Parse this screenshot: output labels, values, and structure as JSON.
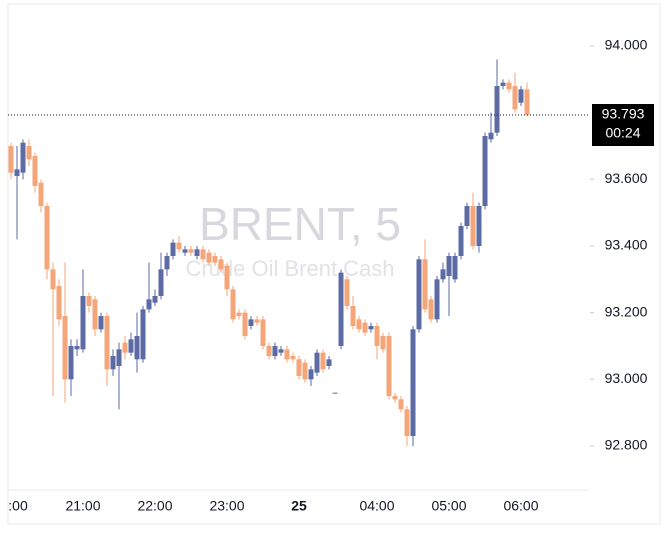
{
  "chart_data": {
    "type": "candlestick",
    "watermark": {
      "symbol": "BRENT, 5",
      "description": "Crude Oil Brent Cash"
    },
    "categories": [
      ":00",
      null,
      null,
      null,
      null,
      null,
      null,
      null,
      null,
      null,
      null,
      null,
      "21:00",
      null,
      null,
      null,
      null,
      null,
      null,
      null,
      null,
      null,
      null,
      null,
      "22:00",
      null,
      null,
      null,
      null,
      null,
      null,
      null,
      null,
      null,
      null,
      null,
      "23:00",
      null,
      null,
      null,
      null,
      null,
      null,
      null,
      null,
      null,
      null,
      null,
      "25",
      null,
      null,
      null,
      null,
      null,
      null,
      null,
      null,
      null,
      null,
      null,
      null,
      "04:00",
      null,
      null,
      null,
      null,
      null,
      null,
      null,
      null,
      null,
      null,
      null,
      "05:00",
      null,
      null,
      null,
      null,
      null,
      null,
      null,
      null,
      null,
      null,
      null,
      "06:00",
      null
    ],
    "open": [
      93.7,
      93.61,
      93.62,
      93.7,
      93.67,
      93.59,
      93.52,
      93.33,
      93.28,
      93.19,
      93.0,
      93.09,
      93.09,
      93.25,
      93.24,
      93.15,
      93.19,
      93.03,
      93.04,
      93.11,
      93.08,
      93.06,
      93.06,
      93.21,
      93.23,
      93.25,
      93.33,
      93.37,
      93.41,
      93.38,
      93.39,
      93.37,
      93.39,
      93.38,
      93.37,
      93.36,
      93.34,
      93.27,
      93.2,
      93.2,
      93.16,
      93.18,
      93.18,
      93.1,
      93.07,
      93.08,
      93.09,
      93.07,
      93.06,
      93.05,
      93.0,
      93.02,
      93.08,
      93.04,
      92.96,
      93.1,
      93.3,
      93.22,
      93.18,
      93.17,
      93.15,
      93.16,
      93.13,
      93.13,
      92.95,
      92.94,
      92.91,
      92.83,
      93.15,
      93.36,
      93.24,
      93.18,
      93.3,
      93.31,
      93.3,
      93.37,
      93.46,
      93.52,
      93.4,
      93.52,
      93.72,
      93.74,
      93.88,
      93.89,
      93.88,
      93.83,
      93.87
    ],
    "high": [
      93.71,
      93.7,
      93.72,
      93.72,
      93.68,
      93.6,
      93.53,
      93.35,
      93.3,
      93.35,
      93.12,
      93.12,
      93.33,
      93.26,
      93.25,
      93.2,
      93.2,
      93.09,
      93.11,
      93.13,
      93.14,
      93.2,
      93.22,
      93.35,
      93.27,
      93.38,
      93.38,
      93.42,
      93.43,
      93.4,
      93.4,
      93.4,
      93.4,
      93.39,
      93.38,
      93.37,
      93.35,
      93.28,
      93.21,
      93.21,
      93.19,
      93.19,
      93.19,
      93.11,
      93.11,
      93.1,
      93.1,
      93.08,
      93.07,
      93.06,
      93.04,
      93.09,
      93.09,
      93.07,
      92.96,
      93.33,
      93.31,
      93.25,
      93.19,
      93.18,
      93.17,
      93.17,
      93.14,
      93.14,
      92.96,
      92.95,
      92.92,
      93.16,
      93.37,
      93.42,
      93.25,
      93.31,
      93.35,
      93.38,
      93.38,
      93.47,
      93.53,
      93.56,
      93.53,
      93.74,
      93.8,
      93.96,
      93.9,
      93.9,
      93.92,
      93.88,
      93.89
    ],
    "low": [
      93.6,
      93.42,
      93.6,
      93.64,
      93.56,
      93.5,
      93.3,
      92.95,
      93.16,
      92.93,
      92.95,
      93.07,
      93.08,
      93.2,
      93.13,
      93.14,
      92.98,
      93.01,
      92.91,
      93.06,
      93.07,
      93.02,
      93.05,
      93.2,
      93.22,
      93.24,
      93.31,
      93.36,
      93.38,
      93.37,
      93.37,
      93.36,
      93.35,
      93.34,
      93.34,
      93.32,
      93.25,
      93.17,
      93.18,
      93.12,
      93.15,
      93.16,
      93.09,
      93.06,
      93.06,
      93.07,
      93.05,
      93.05,
      93.0,
      92.99,
      92.98,
      93.01,
      93.02,
      93.03,
      92.96,
      93.09,
      93.21,
      93.15,
      93.14,
      93.13,
      93.14,
      93.06,
      93.08,
      92.94,
      92.93,
      92.9,
      92.8,
      92.8,
      93.14,
      93.2,
      93.17,
      93.17,
      93.29,
      93.19,
      93.29,
      93.36,
      93.45,
      93.39,
      93.38,
      93.51,
      93.71,
      93.73,
      93.87,
      93.86,
      93.8,
      93.82,
      93.79
    ],
    "close": [
      93.62,
      93.63,
      93.71,
      93.66,
      93.58,
      93.52,
      93.33,
      93.27,
      93.18,
      93.0,
      93.1,
      93.1,
      93.25,
      93.22,
      93.15,
      93.19,
      93.03,
      93.07,
      93.09,
      93.08,
      93.12,
      93.13,
      93.21,
      93.24,
      93.25,
      93.33,
      93.37,
      93.41,
      93.39,
      93.39,
      93.38,
      93.39,
      93.36,
      93.35,
      93.35,
      93.33,
      93.27,
      93.18,
      93.19,
      93.13,
      93.18,
      93.17,
      93.1,
      93.07,
      93.1,
      93.09,
      93.06,
      93.06,
      93.01,
      93.0,
      93.03,
      93.08,
      93.03,
      93.06,
      92.96,
      93.32,
      93.22,
      93.16,
      93.15,
      93.14,
      93.16,
      93.1,
      93.09,
      92.95,
      92.94,
      92.91,
      92.83,
      93.15,
      93.36,
      93.21,
      93.18,
      93.3,
      93.33,
      93.37,
      93.37,
      93.46,
      93.52,
      93.4,
      93.52,
      93.73,
      93.74,
      93.88,
      93.89,
      93.87,
      93.81,
      93.87,
      93.793
    ],
    "up_color": "#5d6ba4",
    "down_color": "#f5a679",
    "last_price": 93.793,
    "countdown": "00:24",
    "ylim": [
      92.668,
      94.123
    ],
    "yticks": [
      {
        "value": 92.8,
        "label": "92.800"
      },
      {
        "value": 93.0,
        "label": "93.000"
      },
      {
        "value": 93.2,
        "label": "93.200"
      },
      {
        "value": 93.4,
        "label": "93.400"
      },
      {
        "value": 93.6,
        "label": "93.600"
      },
      {
        "value": 94.0,
        "label": "94.000"
      }
    ]
  }
}
